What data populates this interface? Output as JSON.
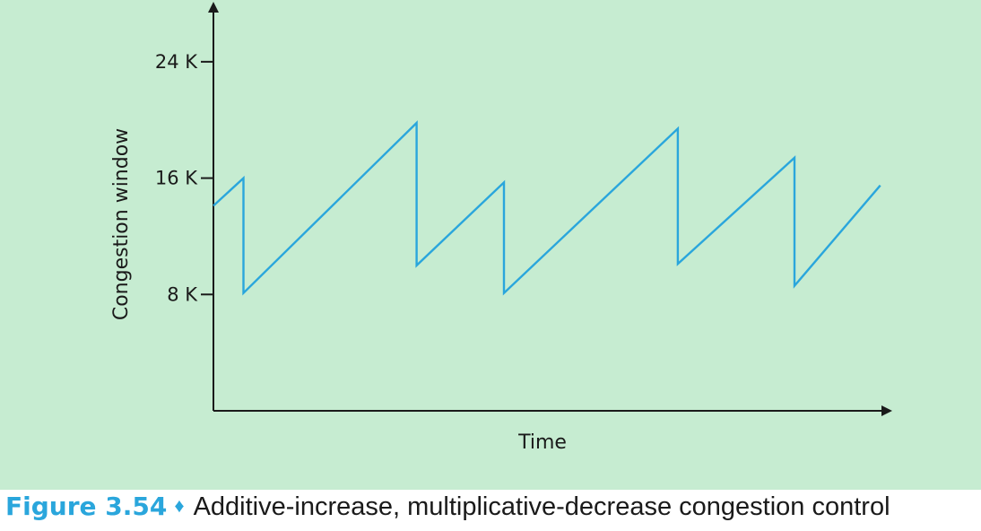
{
  "figure": {
    "label": "Figure 3.54",
    "separator": "♦",
    "caption": "Additive-increase, multiplicative-decrease congestion control"
  },
  "colors": {
    "background": "#c6ecd1",
    "line": "#2aa6dc",
    "axis": "#1a1a1a",
    "caption_label": "#2aa6dc"
  },
  "chart_data": {
    "type": "line",
    "title": "",
    "xlabel": "Time",
    "ylabel": "Congestion window",
    "ylim": [
      0,
      28
    ],
    "xlim": [
      0,
      100
    ],
    "yticks": [
      {
        "value": 8,
        "label": "8 K"
      },
      {
        "value": 16,
        "label": "16 K"
      },
      {
        "value": 24,
        "label": "24 K"
      }
    ],
    "grid": false,
    "legend": "none",
    "series": [
      {
        "x": [
          0,
          4.2,
          4.2,
          28.4,
          28.4,
          40.6,
          40.6,
          64.9,
          64.9,
          81.2,
          81.2,
          93.2
        ],
        "y": [
          14.1,
          16.0,
          8.1,
          19.8,
          10.0,
          15.7,
          8.1,
          19.4,
          10.1,
          17.4,
          8.6,
          15.5
        ]
      }
    ]
  }
}
